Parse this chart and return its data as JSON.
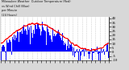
{
  "background_color": "#d8d8d8",
  "plot_bg_color": "#ffffff",
  "bar_color": "#0000ff",
  "line_color": "#ff0000",
  "grid_color": "#bbbbbb",
  "ylim": [
    -10,
    42
  ],
  "ytick_labels": [
    "40",
    "35",
    "30",
    "25",
    "20",
    "15",
    "10",
    "5",
    "0",
    "-5",
    "-10"
  ],
  "ytick_vals": [
    40,
    35,
    30,
    25,
    20,
    15,
    10,
    5,
    0,
    -5,
    -10
  ],
  "num_points": 1440,
  "seed": 42,
  "num_xticks": 25
}
